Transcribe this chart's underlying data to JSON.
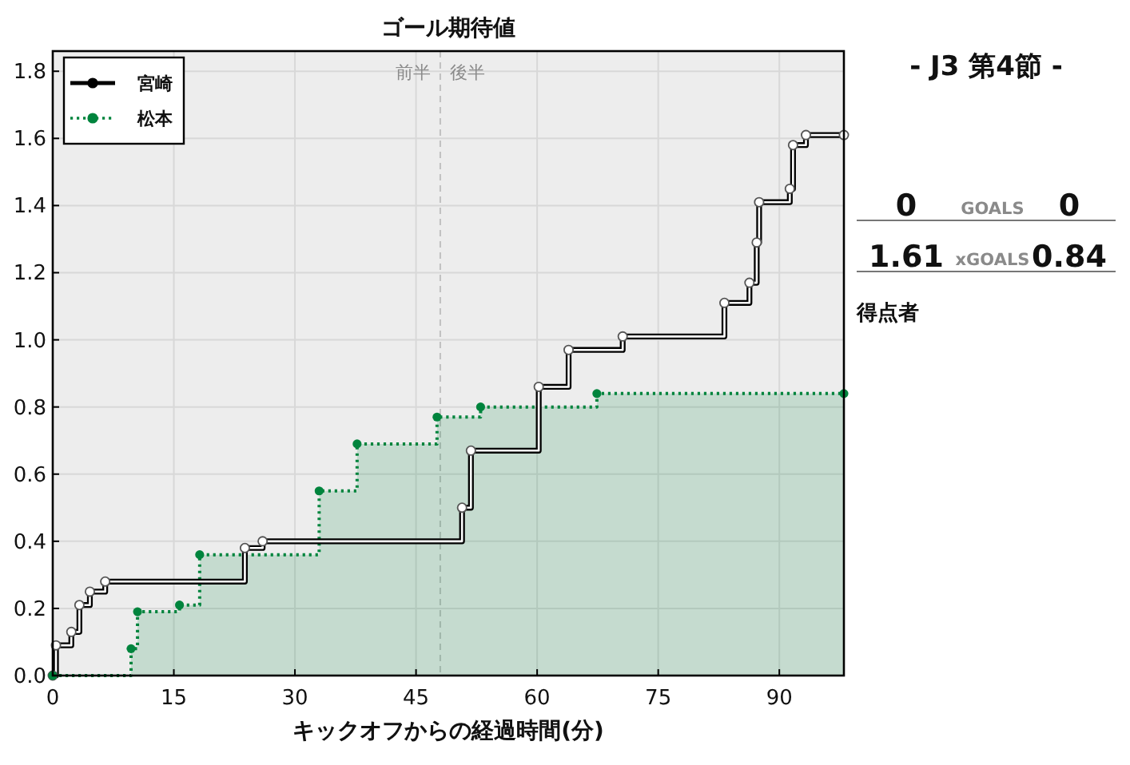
{
  "chart_data": [
    {
      "type": "step",
      "title": "ゴール期待値",
      "xlabel": "キックオフからの経過時間(分)",
      "xlim": [
        0,
        98
      ],
      "ylim": [
        0,
        1.86
      ],
      "xticks": [
        0,
        15,
        30,
        45,
        60,
        75,
        90
      ],
      "yticks": [
        {
          "value": 0,
          "label": "0.0"
        },
        0.2,
        0.4,
        0.6,
        0.8,
        {
          "value": 1,
          "label": "1.0"
        },
        1.2,
        1.4,
        1.6,
        1.8
      ],
      "grid": true,
      "legend": "top left",
      "marker": "circle",
      "ref_lines": [
        {
          "axis": "x",
          "value": 48,
          "color": "#c0c0c0",
          "line_style": "dashed"
        }
      ],
      "annotations": [
        "前半",
        "後半"
      ],
      "series": [
        {
          "name": "宮崎",
          "type": "step",
          "color": "#000000",
          "line_style": "solid",
          "x": [
            0,
            0.4,
            2.3,
            3.3,
            4.6,
            6.5,
            23.8,
            26.0,
            50.7,
            51.8,
            60.2,
            63.9,
            70.6,
            83.2,
            86.3,
            87.2,
            87.5,
            91.3,
            91.7,
            93.3,
            98
          ],
          "values": [
            0,
            0.09,
            0.13,
            0.21,
            0.25,
            0.28,
            0.38,
            0.4,
            0.5,
            0.67,
            0.86,
            0.97,
            1.01,
            1.11,
            1.17,
            1.29,
            1.41,
            1.45,
            1.58,
            1.61,
            1.61
          ]
        },
        {
          "name": "松本",
          "type": "area",
          "color": "#00843d",
          "line_style": "dotted",
          "x": [
            0,
            9.7,
            10.5,
            15.7,
            18.2,
            33.0,
            37.7,
            47.6,
            53.0,
            67.4,
            98
          ],
          "values": [
            0,
            0.08,
            0.19,
            0.21,
            0.36,
            0.55,
            0.69,
            0.77,
            0.8,
            0.84,
            0.84
          ]
        }
      ]
    },
    {
      "type": "other",
      "title": "- J3 第4節 -",
      "annotations": [
        "0",
        "GOALS",
        "0",
        "1.61",
        "xGOALS",
        "0.84",
        "得点者"
      ]
    }
  ]
}
